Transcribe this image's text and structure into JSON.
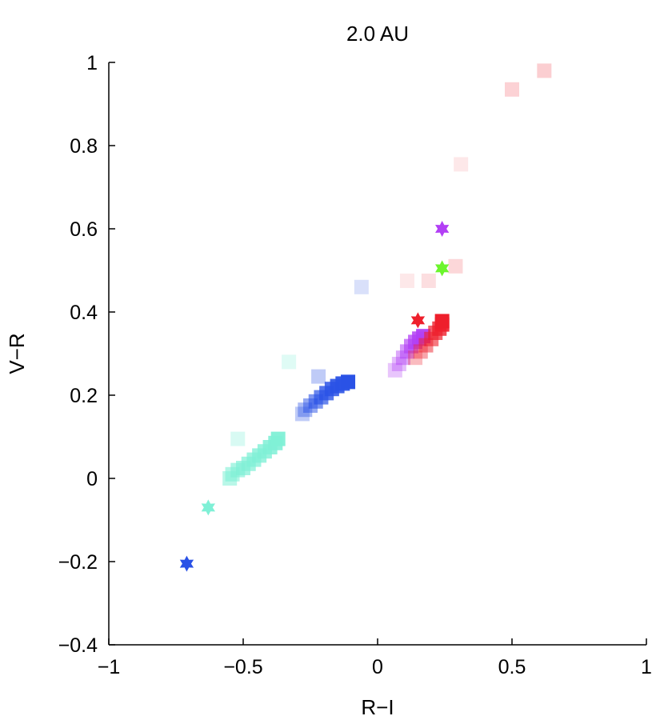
{
  "chart_data": {
    "type": "scatter",
    "title": "2.0 AU",
    "xlabel": "R−I",
    "ylabel": "V−R",
    "xlim": [
      -1,
      1
    ],
    "ylim": [
      -0.4,
      1
    ],
    "grid": false,
    "legend": "none",
    "x_ticks": [
      {
        "value": -1,
        "label": "−1"
      },
      {
        "value": -0.5,
        "label": "−0.5"
      },
      {
        "value": 0,
        "label": "0"
      },
      {
        "value": 0.5,
        "label": "0.5"
      },
      {
        "value": 1,
        "label": "1"
      }
    ],
    "y_ticks": [
      {
        "value": -0.4,
        "label": "−0.4"
      },
      {
        "value": -0.2,
        "label": "−0.2"
      },
      {
        "value": 0,
        "label": "0"
      },
      {
        "value": 0.2,
        "label": "0.2"
      },
      {
        "value": 0.4,
        "label": "0.4"
      },
      {
        "value": 0.6,
        "label": "0.6"
      },
      {
        "value": 0.8,
        "label": "0.8"
      },
      {
        "value": 1,
        "label": "1"
      }
    ],
    "series": [
      {
        "color": "#7ff0d6",
        "marker": "square",
        "points": [
          {
            "x": -0.52,
            "y": 0.095,
            "a": 0.3
          },
          {
            "x": -0.33,
            "y": 0.28,
            "a": 0.25
          },
          {
            "x": -0.55,
            "y": 0.0,
            "a": 0.55
          },
          {
            "x": -0.54,
            "y": 0.01,
            "a": 0.6
          },
          {
            "x": -0.52,
            "y": 0.02,
            "a": 0.65
          },
          {
            "x": -0.5,
            "y": 0.025,
            "a": 0.7
          },
          {
            "x": -0.48,
            "y": 0.035,
            "a": 0.72
          },
          {
            "x": -0.46,
            "y": 0.045,
            "a": 0.75
          },
          {
            "x": -0.44,
            "y": 0.055,
            "a": 0.78
          },
          {
            "x": -0.42,
            "y": 0.065,
            "a": 0.8
          },
          {
            "x": -0.4,
            "y": 0.075,
            "a": 0.85
          },
          {
            "x": -0.38,
            "y": 0.085,
            "a": 0.9
          },
          {
            "x": -0.37,
            "y": 0.095,
            "a": 0.95
          }
        ]
      },
      {
        "color": "#2a52e6",
        "marker": "square",
        "points": [
          {
            "x": -0.06,
            "y": 0.46,
            "a": 0.18
          },
          {
            "x": -0.22,
            "y": 0.245,
            "a": 0.3
          },
          {
            "x": -0.28,
            "y": 0.155,
            "a": 0.3
          },
          {
            "x": -0.27,
            "y": 0.165,
            "a": 0.4
          },
          {
            "x": -0.25,
            "y": 0.175,
            "a": 0.5
          },
          {
            "x": -0.23,
            "y": 0.185,
            "a": 0.6
          },
          {
            "x": -0.21,
            "y": 0.195,
            "a": 0.7
          },
          {
            "x": -0.19,
            "y": 0.205,
            "a": 0.8
          },
          {
            "x": -0.17,
            "y": 0.215,
            "a": 0.85
          },
          {
            "x": -0.15,
            "y": 0.222,
            "a": 0.9
          },
          {
            "x": -0.13,
            "y": 0.228,
            "a": 0.95
          },
          {
            "x": -0.11,
            "y": 0.232,
            "a": 1.0
          }
        ]
      },
      {
        "color": "#b23ff5",
        "marker": "square",
        "points": [
          {
            "x": 0.065,
            "y": 0.26,
            "a": 0.3
          },
          {
            "x": 0.08,
            "y": 0.275,
            "a": 0.35
          },
          {
            "x": 0.095,
            "y": 0.29,
            "a": 0.45
          },
          {
            "x": 0.11,
            "y": 0.305,
            "a": 0.55
          },
          {
            "x": 0.125,
            "y": 0.318,
            "a": 0.65
          },
          {
            "x": 0.14,
            "y": 0.328,
            "a": 0.75
          },
          {
            "x": 0.155,
            "y": 0.336,
            "a": 0.85
          },
          {
            "x": 0.17,
            "y": 0.342,
            "a": 0.95
          }
        ]
      },
      {
        "color": "#ee1f2c",
        "marker": "square",
        "points": [
          {
            "x": 0.62,
            "y": 0.98,
            "a": 0.22
          },
          {
            "x": 0.5,
            "y": 0.935,
            "a": 0.2
          },
          {
            "x": 0.31,
            "y": 0.755,
            "a": 0.1
          },
          {
            "x": 0.19,
            "y": 0.475,
            "a": 0.15
          },
          {
            "x": 0.29,
            "y": 0.51,
            "a": 0.18
          },
          {
            "x": 0.11,
            "y": 0.475,
            "a": 0.1
          },
          {
            "x": 0.14,
            "y": 0.29,
            "a": 0.3
          },
          {
            "x": 0.16,
            "y": 0.305,
            "a": 0.4
          },
          {
            "x": 0.18,
            "y": 0.32,
            "a": 0.5
          },
          {
            "x": 0.2,
            "y": 0.335,
            "a": 0.6
          },
          {
            "x": 0.215,
            "y": 0.35,
            "a": 0.7
          },
          {
            "x": 0.23,
            "y": 0.36,
            "a": 0.8
          },
          {
            "x": 0.24,
            "y": 0.37,
            "a": 0.9
          },
          {
            "x": 0.24,
            "y": 0.378,
            "a": 1.0
          }
        ]
      },
      {
        "color": "#7ff0d6",
        "marker": "star",
        "points": [
          {
            "x": -0.63,
            "y": -0.07,
            "a": 1.0
          }
        ]
      },
      {
        "color": "#2a52e6",
        "marker": "star",
        "points": [
          {
            "x": -0.71,
            "y": -0.205,
            "a": 1.0
          }
        ]
      },
      {
        "color": "#ee1f2c",
        "marker": "star",
        "points": [
          {
            "x": 0.15,
            "y": 0.38,
            "a": 1.0
          }
        ]
      },
      {
        "color": "#b23ff5",
        "marker": "star",
        "points": [
          {
            "x": 0.24,
            "y": 0.6,
            "a": 1.0
          }
        ]
      },
      {
        "color": "#6cf52c",
        "marker": "star",
        "points": [
          {
            "x": 0.24,
            "y": 0.505,
            "a": 1.0
          }
        ]
      }
    ]
  }
}
